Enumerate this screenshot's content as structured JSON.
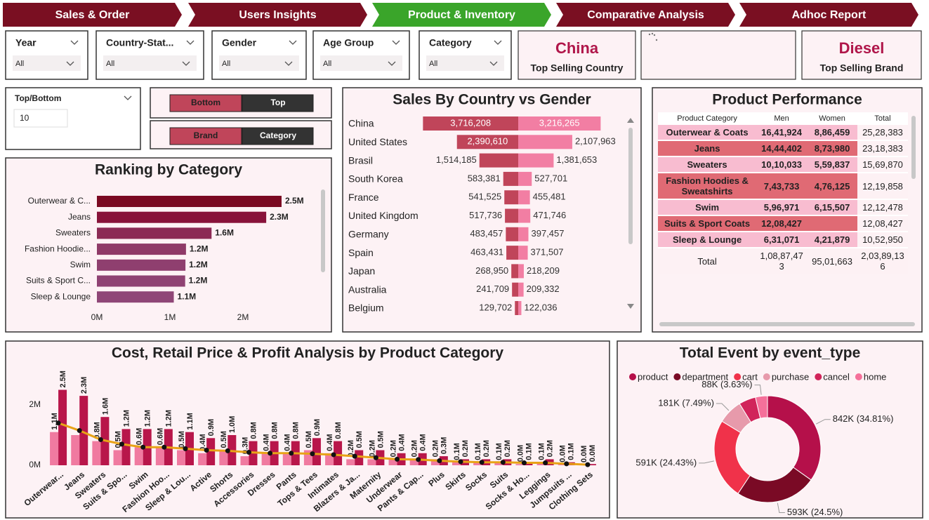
{
  "nav": {
    "tabs": [
      "Sales & Order",
      "Users Insights",
      "Product & Inventory",
      "Comparative Analysis",
      "Adhoc Report"
    ],
    "active": 2
  },
  "filters": [
    {
      "label": "Year",
      "value": "All"
    },
    {
      "label": "Country-Stat...",
      "value": "All"
    },
    {
      "label": "Gender",
      "value": "All"
    },
    {
      "label": "Age Group",
      "value": "All"
    },
    {
      "label": "Category",
      "value": "All"
    }
  ],
  "cards": [
    {
      "value": "China",
      "label": "Top Selling Country"
    },
    {
      "value": "Diesel",
      "label": "Top Selling Brand"
    }
  ],
  "top_bottom": {
    "label": "Top/Bottom",
    "value": 10
  },
  "toggles": [
    [
      "Bottom",
      "Top"
    ],
    [
      "Brand",
      "Category"
    ]
  ],
  "chart_data": [
    {
      "type": "hbar",
      "title": "Ranking by Category",
      "categories": [
        "Outerwear & C...",
        "Jeans",
        "Sweaters",
        "Fashion Hoodie...",
        "Swim",
        "Suits & Sport C...",
        "Sleep & Lounge"
      ],
      "values": [
        2528383,
        2318383,
        1569870,
        1219858,
        1212478,
        1208427,
        1052950
      ],
      "value_labels": [
        "2.5M",
        "2.3M",
        "1.6M",
        "1.2M",
        "1.2M",
        "1.2M",
        "1.1M"
      ],
      "colors": [
        "#7b0a22",
        "#88123a",
        "#8c2a55",
        "#8f3a68",
        "#8f3f6f",
        "#8f4273",
        "#8f4677"
      ],
      "xlim": [
        0,
        3000000
      ],
      "xticks": [
        {
          "value": 0,
          "label": "0M"
        },
        {
          "value": 1000000,
          "label": "1M"
        },
        {
          "value": 2000000,
          "label": "2M"
        }
      ]
    },
    {
      "type": "butterfly",
      "title": "Sales By Country vs Gender",
      "categories": [
        "China",
        "United States",
        "Brasil",
        "South Korea",
        "France",
        "United Kingdom",
        "Germany",
        "Spain",
        "Japan",
        "Australia",
        "Belgium"
      ],
      "xlim": [
        0,
        4000000
      ],
      "series": [
        {
          "color": "#c0455a",
          "values": [
            3716208,
            2390610,
            1514185,
            583381,
            541525,
            517736,
            483457,
            463431,
            268950,
            241709,
            129702
          ],
          "value_labels": [
            "3,716,208",
            "2,390,610",
            "1,514,185",
            "583,381",
            "541,525",
            "517,736",
            "483,457",
            "463,431",
            "268,950",
            "241,709",
            "129,702"
          ]
        },
        {
          "color": "#f27ea3",
          "values": [
            3216265,
            2107963,
            1381653,
            527701,
            455481,
            471746,
            397457,
            371507,
            218209,
            209332,
            122036
          ],
          "value_labels": [
            "3,216,265",
            "2,107,963",
            "1,381,653",
            "527,701",
            "455,481",
            "471,746",
            "397,457",
            "371,507",
            "218,209",
            "209,332",
            "122,036"
          ]
        }
      ]
    },
    {
      "type": "combo",
      "title": "Cost, Retail Price & Profit Analysis by Product Category",
      "categories": [
        "Outerwear...",
        "Jeans",
        "Sweaters",
        "Suits & Spo...",
        "Swim",
        "Fashion Hoo...",
        "Sleep & Lou...",
        "Active",
        "Shorts",
        "Accessories",
        "Dresses",
        "Pants",
        "Tops & Tees",
        "Intimates",
        "Blazers & Ja...",
        "Maternity",
        "Underwear",
        "Pants & Cap...",
        "Plus",
        "Skirts",
        "Socks",
        "Suits",
        "Socks & Ho...",
        "Leggings",
        "Jumpsuits ...",
        "Clothing Sets"
      ],
      "ylim": [
        0,
        3000000
      ],
      "yticks": [
        {
          "value": 0,
          "label": "0M"
        },
        {
          "value": 2000000,
          "label": "2M"
        }
      ],
      "series": [
        {
          "type": "bar",
          "color": "#f07aa0",
          "values": [
            1100000,
            1000000,
            800000,
            500000,
            600000,
            600000,
            500000,
            400000,
            500000,
            300000,
            400000,
            400000,
            500000,
            400000,
            200000,
            200000,
            200000,
            200000,
            200000,
            100000,
            100000,
            100000,
            40000,
            100000,
            30000,
            20000
          ],
          "value_labels": [
            "1.1M",
            null,
            "0.8M",
            "0.5M",
            "0.6M",
            "0.6M",
            "0.5M",
            "0.4M",
            "0.5M",
            "0.3M",
            "0.4M",
            "0.4M",
            "0.5M",
            "0.4M",
            "0.2M",
            "0.2M",
            "0.2M",
            "0.2M",
            "0.2M",
            "0.1M",
            "0.1M",
            "0.1M",
            "0.0M",
            "0.1M",
            "0.0M",
            "0.0M"
          ]
        },
        {
          "type": "bar",
          "color": "#b8164a",
          "values": [
            2500000,
            2300000,
            1600000,
            1200000,
            1200000,
            1200000,
            1100000,
            900000,
            1000000,
            800000,
            800000,
            800000,
            900000,
            800000,
            500000,
            500000,
            400000,
            400000,
            300000,
            200000,
            200000,
            200000,
            100000,
            200000,
            100000,
            40000
          ],
          "value_labels": [
            "2.5M",
            "2.3M",
            "1.6M",
            "1.2M",
            "1.2M",
            "1.2M",
            "1.1M",
            "0.9M",
            "1.0M",
            "0.8M",
            "0.8M",
            "0.8M",
            "0.9M",
            "0.8M",
            "0.5M",
            "0.5M",
            "0.4M",
            "0.4M",
            "0.3M",
            "0.2M",
            "0.2M",
            "0.2M",
            "0.1M",
            "0.2M",
            "0.1M",
            "0.0M"
          ]
        },
        {
          "type": "line",
          "color": "#e8a317",
          "values": [
            1400000,
            1150000,
            850000,
            700000,
            600000,
            600000,
            550000,
            500000,
            480000,
            430000,
            400000,
            400000,
            380000,
            350000,
            300000,
            250000,
            200000,
            190000,
            150000,
            120000,
            100000,
            100000,
            80000,
            80000,
            50000,
            20000
          ]
        }
      ]
    },
    {
      "type": "donut",
      "title": "Total Event by event_type",
      "categories": [
        "product",
        "department",
        "cart",
        "purchase",
        "cancel",
        "home"
      ],
      "values": [
        842000,
        593000,
        591000,
        181000,
        124000,
        88000
      ],
      "value_labels": [
        "842K (34.81%)",
        "593K (24.5%)",
        "591K (24.43%)",
        "181K (7.49%)",
        null,
        "88K (3.63%)"
      ],
      "colors": [
        "#b5104a",
        "#7a0a25",
        "#f0324a",
        "#e79aab",
        "#d1245a",
        "#f5709a"
      ]
    }
  ],
  "table": {
    "title": "Product Performance",
    "columns": [
      "Product Category",
      "Men",
      "Women",
      "Total"
    ],
    "rows": [
      [
        "Outerwear & Coats",
        "16,41,924",
        "8,86,459",
        "25,28,383"
      ],
      [
        "Jeans",
        "14,44,402",
        "8,73,980",
        "23,18,383"
      ],
      [
        "Sweaters",
        "10,10,033",
        "5,59,837",
        "15,69,870"
      ],
      [
        "Fashion Hoodies & Sweatshirts",
        "7,43,733",
        "4,76,125",
        "12,19,858"
      ],
      [
        "Swim",
        "5,96,971",
        "6,15,507",
        "12,12,478"
      ],
      [
        "Suits & Sport Coats",
        "12,08,427",
        null,
        "12,08,427"
      ],
      [
        "Sleep & Lounge",
        "6,31,071",
        "4,21,879",
        "10,52,950"
      ]
    ],
    "total": [
      "Total",
      "1,08,87,473",
      "95,01,663",
      "2,03,89,136"
    ]
  }
}
